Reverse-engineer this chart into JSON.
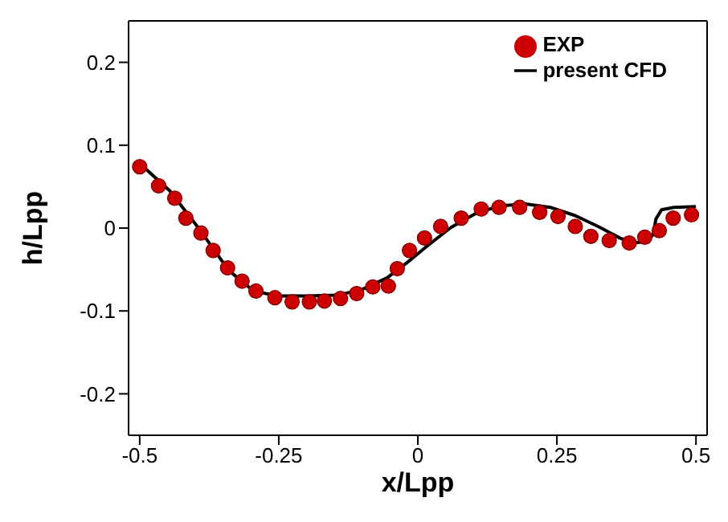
{
  "chart_data": {
    "type": "scatter",
    "xlabel": "x/Lpp",
    "ylabel": "h/Lpp",
    "xlim": [
      -0.52,
      0.52
    ],
    "ylim": [
      -0.25,
      0.25
    ],
    "xticks": [
      -0.5,
      -0.25,
      0,
      0.25,
      0.5
    ],
    "yticks": [
      -0.2,
      -0.1,
      0,
      0.1,
      0.2
    ],
    "grid": false,
    "legend": "top right",
    "series": [
      {
        "name": "EXP",
        "marker": "circle",
        "color": "#cc0000",
        "x": [
          -0.5,
          -0.466,
          -0.437,
          -0.417,
          -0.39,
          -0.368,
          -0.342,
          -0.316,
          -0.291,
          -0.257,
          -0.226,
          -0.195,
          -0.168,
          -0.139,
          -0.11,
          -0.081,
          -0.053,
          -0.037,
          -0.015,
          0.012,
          0.041,
          0.078,
          0.114,
          0.146,
          0.183,
          0.219,
          0.252,
          0.283,
          0.311,
          0.344,
          0.38,
          0.408,
          0.434,
          0.459,
          0.492
        ],
        "values": [
          0.074,
          0.051,
          0.036,
          0.012,
          -0.006,
          -0.027,
          -0.048,
          -0.064,
          -0.076,
          -0.084,
          -0.089,
          -0.089,
          -0.088,
          -0.085,
          -0.079,
          -0.071,
          -0.07,
          -0.049,
          -0.027,
          -0.012,
          0.002,
          0.012,
          0.023,
          0.025,
          0.025,
          0.019,
          0.014,
          0.002,
          -0.01,
          -0.015,
          -0.018,
          -0.011,
          -0.003,
          0.012,
          0.016
        ]
      },
      {
        "name": "present CFD",
        "type": "line",
        "marker": "none",
        "line_style": "solid",
        "color": "#000000",
        "x": [
          -0.5,
          -0.446,
          -0.393,
          -0.34,
          -0.295,
          -0.251,
          -0.197,
          -0.144,
          -0.1,
          -0.055,
          -0.02,
          0.016,
          0.06,
          0.105,
          0.149,
          0.194,
          0.238,
          0.283,
          0.327,
          0.363,
          0.389,
          0.412,
          0.423,
          0.428,
          0.438,
          0.46,
          0.5
        ],
        "values": [
          0.078,
          0.045,
          -0.001,
          -0.051,
          -0.076,
          -0.082,
          -0.082,
          -0.081,
          -0.074,
          -0.06,
          -0.042,
          -0.022,
          0.001,
          0.018,
          0.027,
          0.029,
          0.025,
          0.015,
          0.001,
          -0.012,
          -0.018,
          -0.016,
          -0.008,
          0.011,
          0.022,
          0.025,
          0.026
        ]
      }
    ]
  }
}
